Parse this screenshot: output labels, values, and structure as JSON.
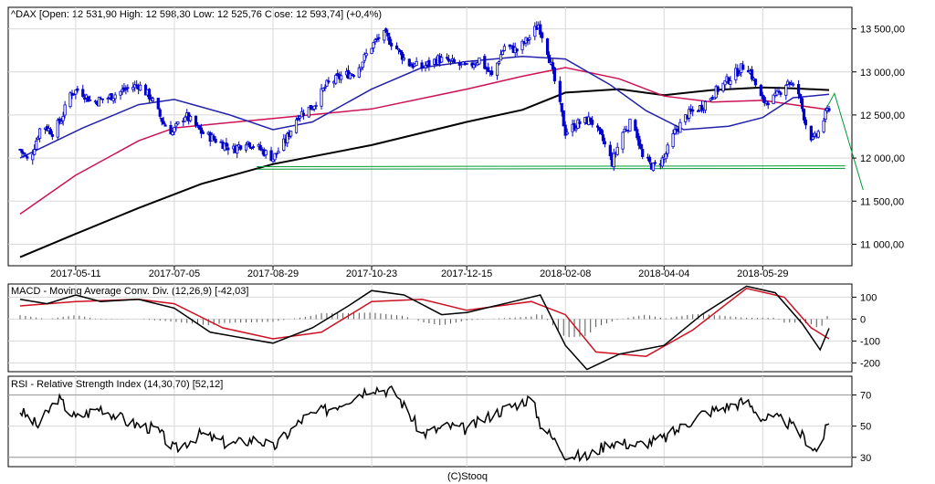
{
  "chart_data": [
    {
      "type": "candlestick",
      "panel": "price",
      "title": "^DAX [Open: 12 531,90  High: 12 598,30  Low: 12 525,76  Close: 12 593,74] (+0,4%)",
      "ylim": [
        10750,
        13750
      ],
      "y_ticks": [
        "13 500,00",
        "13 000,00",
        "12 500,00",
        "12 000,00",
        "11 500,00",
        "11 000,00"
      ],
      "y_tick_values": [
        13500,
        13000,
        12500,
        12000,
        11500,
        11000
      ],
      "x_ticks": [
        "2017-05-11",
        "2017-07-05",
        "2017-08-29",
        "2017-10-23",
        "2017-12-15",
        "2018-02-08",
        "2018-04-04",
        "2018-05-29"
      ],
      "x_tick_dates": [
        "2017-05-11",
        "2017-07-05",
        "2017-08-29",
        "2017-10-23",
        "2017-12-15",
        "2018-02-08",
        "2018-04-04",
        "2018-05-29"
      ],
      "x_range": [
        "2017-04-10",
        "2018-07-05"
      ],
      "price_path": [
        [
          "2017-04-10",
          12100
        ],
        [
          "2017-04-15",
          11950
        ],
        [
          "2017-04-22",
          12400
        ],
        [
          "2017-04-28",
          12300
        ],
        [
          "2017-05-03",
          12450
        ],
        [
          "2017-05-08",
          12750
        ],
        [
          "2017-05-13",
          12800
        ],
        [
          "2017-05-20",
          12650
        ],
        [
          "2017-05-29",
          12700
        ],
        [
          "2017-06-08",
          12800
        ],
        [
          "2017-06-15",
          12850
        ],
        [
          "2017-06-22",
          12700
        ],
        [
          "2017-06-29",
          12400
        ],
        [
          "2017-07-04",
          12300
        ],
        [
          "2017-07-11",
          12500
        ],
        [
          "2017-07-20",
          12300
        ],
        [
          "2017-07-29",
          12200
        ],
        [
          "2017-08-07",
          12100
        ],
        [
          "2017-08-14",
          12200
        ],
        [
          "2017-08-22",
          12100
        ],
        [
          "2017-08-29",
          12000
        ],
        [
          "2017-09-05",
          12200
        ],
        [
          "2017-09-12",
          12500
        ],
        [
          "2017-09-20",
          12600
        ],
        [
          "2017-09-28",
          12850
        ],
        [
          "2017-10-06",
          12950
        ],
        [
          "2017-10-14",
          13000
        ],
        [
          "2017-10-23",
          13300
        ],
        [
          "2017-10-29",
          13450
        ],
        [
          "2017-11-05",
          13300
        ],
        [
          "2017-11-12",
          13100
        ],
        [
          "2017-11-20",
          13050
        ],
        [
          "2017-11-29",
          13150
        ],
        [
          "2017-12-08",
          13100
        ],
        [
          "2017-12-15",
          13050
        ],
        [
          "2017-12-22",
          13150
        ],
        [
          "2017-12-29",
          12950
        ],
        [
          "2018-01-05",
          13300
        ],
        [
          "2018-01-12",
          13250
        ],
        [
          "2018-01-19",
          13400
        ],
        [
          "2018-01-24",
          13550
        ],
        [
          "2018-01-29",
          13250
        ],
        [
          "2018-02-03",
          12800
        ],
        [
          "2018-02-08",
          12300
        ],
        [
          "2018-02-15",
          12400
        ],
        [
          "2018-02-22",
          12450
        ],
        [
          "2018-03-01",
          12200
        ],
        [
          "2018-03-06",
          11950
        ],
        [
          "2018-03-12",
          12300
        ],
        [
          "2018-03-18",
          12450
        ],
        [
          "2018-03-23",
          12000
        ],
        [
          "2018-03-29",
          11900
        ],
        [
          "2018-04-04",
          12000
        ],
        [
          "2018-04-10",
          12300
        ],
        [
          "2018-04-17",
          12500
        ],
        [
          "2018-04-25",
          12600
        ],
        [
          "2018-05-04",
          12800
        ],
        [
          "2018-05-12",
          12950
        ],
        [
          "2018-05-20",
          13100
        ],
        [
          "2018-05-25",
          12850
        ],
        [
          "2018-05-29",
          12650
        ],
        [
          "2018-06-05",
          12700
        ],
        [
          "2018-06-12",
          12900
        ],
        [
          "2018-06-18",
          12750
        ],
        [
          "2018-06-22",
          12400
        ],
        [
          "2018-06-26",
          12200
        ],
        [
          "2018-06-29",
          12300
        ],
        [
          "2018-07-03",
          12500
        ],
        [
          "2018-07-05",
          12593.74
        ]
      ],
      "ma_blue": [
        [
          "2017-04-10",
          12000
        ],
        [
          "2017-05-15",
          12350
        ],
        [
          "2017-06-15",
          12620
        ],
        [
          "2017-07-05",
          12680
        ],
        [
          "2017-08-05",
          12500
        ],
        [
          "2017-08-29",
          12330
        ],
        [
          "2017-09-20",
          12420
        ],
        [
          "2017-10-23",
          12800
        ],
        [
          "2017-11-20",
          13050
        ],
        [
          "2017-12-15",
          13120
        ],
        [
          "2018-01-15",
          13180
        ],
        [
          "2018-02-08",
          13150
        ],
        [
          "2018-03-05",
          12850
        ],
        [
          "2018-03-25",
          12550
        ],
        [
          "2018-04-15",
          12330
        ],
        [
          "2018-05-10",
          12370
        ],
        [
          "2018-05-29",
          12470
        ],
        [
          "2018-06-15",
          12700
        ],
        [
          "2018-07-05",
          12740
        ]
      ],
      "ma_red": [
        [
          "2017-04-10",
          11350
        ],
        [
          "2017-05-11",
          11800
        ],
        [
          "2017-06-15",
          12200
        ],
        [
          "2017-07-05",
          12350
        ],
        [
          "2017-08-29",
          12460
        ],
        [
          "2017-10-23",
          12570
        ],
        [
          "2017-12-15",
          12800
        ],
        [
          "2018-01-15",
          12950
        ],
        [
          "2018-02-08",
          13050
        ],
        [
          "2018-03-10",
          12920
        ],
        [
          "2018-04-04",
          12720
        ],
        [
          "2018-05-01",
          12650
        ],
        [
          "2018-05-29",
          12670
        ],
        [
          "2018-06-15",
          12620
        ],
        [
          "2018-07-05",
          12560
        ]
      ],
      "ma_black": [
        [
          "2017-04-10",
          10850
        ],
        [
          "2017-05-11",
          11120
        ],
        [
          "2017-06-15",
          11420
        ],
        [
          "2017-07-20",
          11700
        ],
        [
          "2017-08-29",
          11930
        ],
        [
          "2017-10-23",
          12150
        ],
        [
          "2017-12-15",
          12420
        ],
        [
          "2018-01-15",
          12560
        ],
        [
          "2018-02-08",
          12760
        ],
        [
          "2018-03-10",
          12800
        ],
        [
          "2018-04-04",
          12730
        ],
        [
          "2018-05-01",
          12790
        ],
        [
          "2018-05-29",
          12820
        ],
        [
          "2018-06-15",
          12810
        ],
        [
          "2018-07-05",
          12790
        ]
      ],
      "support_line": [
        [
          "2017-08-20",
          11870
        ],
        [
          "2018-07-14",
          11880
        ]
      ],
      "support_line_2": [
        [
          "2017-08-20",
          11900
        ],
        [
          "2018-07-14",
          11910
        ]
      ],
      "forecast_line": [
        [
          "2018-07-03",
          12560
        ],
        [
          "2018-07-08",
          12750
        ],
        [
          "2018-07-24",
          11630
        ]
      ],
      "colors": {
        "candles": "#0000cc",
        "ma_blue": "#2222aa",
        "ma_red": "#cc1155",
        "ma_black": "#000000",
        "support": "#009933"
      }
    },
    {
      "type": "line",
      "panel": "macd",
      "title": "MACD - Moving Average Conv. Div. (12,26,9) [-42,03]",
      "ylim": [
        -240,
        160
      ],
      "y_ticks": [
        "100",
        "0",
        "-100",
        "-200"
      ],
      "y_tick_values": [
        100,
        0,
        -100,
        -200
      ],
      "series": [
        {
          "key": "macd",
          "color": "#000000",
          "values": [
            [
              "2017-04-10",
              90
            ],
            [
              "2017-04-25",
              70
            ],
            [
              "2017-05-11",
              110
            ],
            [
              "2017-05-25",
              80
            ],
            [
              "2017-06-15",
              90
            ],
            [
              "2017-07-05",
              50
            ],
            [
              "2017-07-25",
              -60
            ],
            [
              "2017-08-29",
              -110
            ],
            [
              "2017-09-20",
              -40
            ],
            [
              "2017-10-10",
              60
            ],
            [
              "2017-10-23",
              130
            ],
            [
              "2017-11-10",
              110
            ],
            [
              "2017-12-01",
              20
            ],
            [
              "2017-12-15",
              30
            ],
            [
              "2018-01-10",
              80
            ],
            [
              "2018-01-25",
              110
            ],
            [
              "2018-02-08",
              -120
            ],
            [
              "2018-02-20",
              -230
            ],
            [
              "2018-03-10",
              -160
            ],
            [
              "2018-04-04",
              -120
            ],
            [
              "2018-04-25",
              20
            ],
            [
              "2018-05-20",
              150
            ],
            [
              "2018-06-05",
              120
            ],
            [
              "2018-06-20",
              -20
            ],
            [
              "2018-06-30",
              -140
            ],
            [
              "2018-07-05",
              -42
            ]
          ]
        },
        {
          "key": "signal",
          "color": "#cc1122",
          "values": [
            [
              "2017-04-10",
              60
            ],
            [
              "2017-05-11",
              80
            ],
            [
              "2017-06-15",
              90
            ],
            [
              "2017-07-05",
              70
            ],
            [
              "2017-08-01",
              -40
            ],
            [
              "2017-08-29",
              -90
            ],
            [
              "2017-09-25",
              -60
            ],
            [
              "2017-10-23",
              80
            ],
            [
              "2017-11-20",
              90
            ],
            [
              "2017-12-15",
              40
            ],
            [
              "2018-01-20",
              80
            ],
            [
              "2018-02-08",
              20
            ],
            [
              "2018-02-25",
              -150
            ],
            [
              "2018-03-25",
              -170
            ],
            [
              "2018-04-20",
              -50
            ],
            [
              "2018-05-20",
              140
            ],
            [
              "2018-06-10",
              100
            ],
            [
              "2018-06-25",
              -40
            ],
            [
              "2018-07-05",
              -90
            ]
          ]
        }
      ],
      "histogram_color": "#555555"
    },
    {
      "type": "line",
      "panel": "rsi",
      "title": "RSI - Relative Strength Index (14,30,70) [52,12]",
      "ylim": [
        24,
        82
      ],
      "y_ticks": [
        "70",
        "50",
        "30"
      ],
      "y_tick_values": [
        70,
        50,
        30
      ],
      "reference_lines": [
        70,
        30
      ],
      "series": [
        {
          "key": "rsi",
          "color": "#000000",
          "values": [
            [
              "2017-04-10",
              60
            ],
            [
              "2017-04-20",
              50
            ],
            [
              "2017-05-01",
              68
            ],
            [
              "2017-05-11",
              55
            ],
            [
              "2017-05-25",
              62
            ],
            [
              "2017-06-10",
              52
            ],
            [
              "2017-06-25",
              48
            ],
            [
              "2017-07-05",
              35
            ],
            [
              "2017-07-20",
              45
            ],
            [
              "2017-08-05",
              38
            ],
            [
              "2017-08-20",
              42
            ],
            [
              "2017-08-29",
              36
            ],
            [
              "2017-09-15",
              55
            ],
            [
              "2017-10-01",
              62
            ],
            [
              "2017-10-23",
              75
            ],
            [
              "2017-11-05",
              72
            ],
            [
              "2017-11-20",
              45
            ],
            [
              "2017-12-05",
              50
            ],
            [
              "2017-12-15",
              48
            ],
            [
              "2017-12-30",
              58
            ],
            [
              "2018-01-20",
              68
            ],
            [
              "2018-01-25",
              52
            ],
            [
              "2018-02-08",
              32
            ],
            [
              "2018-02-20",
              30
            ],
            [
              "2018-03-05",
              40
            ],
            [
              "2018-03-20",
              38
            ],
            [
              "2018-04-04",
              42
            ],
            [
              "2018-04-25",
              58
            ],
            [
              "2018-05-20",
              66
            ],
            [
              "2018-05-29",
              55
            ],
            [
              "2018-06-10",
              54
            ],
            [
              "2018-06-20",
              44
            ],
            [
              "2018-06-28",
              34
            ],
            [
              "2018-07-05",
              52
            ]
          ]
        }
      ]
    }
  ],
  "footer": {
    "credit": "(C)Stooq"
  }
}
